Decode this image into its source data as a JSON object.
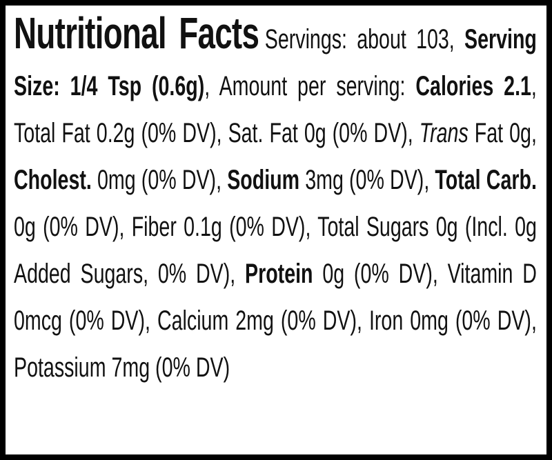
{
  "title": "Nutritional Facts",
  "runs": [
    {
      "text": "Servings: about 103, "
    },
    {
      "text": "Serving Size: 1/4 Tsp (0.6g)",
      "bold": true
    },
    {
      "text": ", Amount per serving: "
    },
    {
      "text": "Calories 2.1",
      "bold": true
    },
    {
      "text": ", Total Fat 0.2g (0% DV), Sat. Fat 0g (0% DV), "
    },
    {
      "text": "Trans",
      "italic": true
    },
    {
      "text": " Fat 0g, "
    },
    {
      "text": "Cholest.",
      "bold": true
    },
    {
      "text": " 0mg (0% DV), "
    },
    {
      "text": "Sodium",
      "bold": true
    },
    {
      "text": " 3mg (0% DV), "
    },
    {
      "text": "Total Carb.",
      "bold": true
    },
    {
      "text": " 0g (0% DV), Fiber 0.1g (0% DV), Total Sugars 0g (Incl. 0g Added Sugars, 0% DV), "
    },
    {
      "text": "Protein",
      "bold": true
    },
    {
      "text": " 0g (0% DV), Vitamin D 0mcg (0% DV), Calcium 2mg (0% DV), Iron 0mg (0% DV), Potassium 7mg (0% DV)"
    }
  ]
}
